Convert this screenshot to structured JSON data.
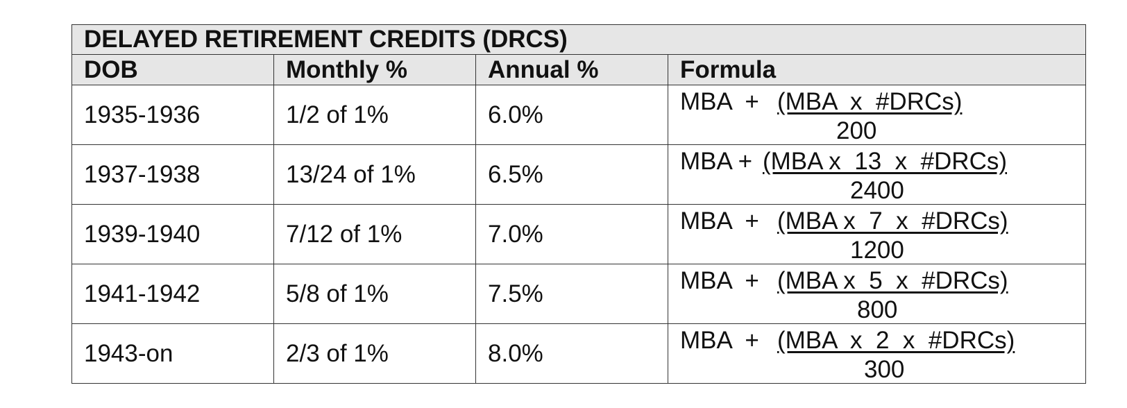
{
  "table": {
    "title": "DELAYED RETIREMENT CREDITS (DRCS)",
    "columns": [
      "DOB",
      "Monthly %",
      "Annual %",
      "Formula"
    ],
    "rows": [
      {
        "dob": "1935-1936",
        "monthly": "1/2 of 1%",
        "annual": "6.0%",
        "formula": {
          "prefix": "MBA  +",
          "numerator": "(MBA  x  #DRCs)",
          "denominator": "200"
        }
      },
      {
        "dob": "1937-1938",
        "monthly": "13/24 of 1%",
        "annual": "6.5%",
        "formula": {
          "prefix": "MBA +",
          "numerator": "(MBA x  13  x  #DRCs)",
          "denominator": "2400"
        }
      },
      {
        "dob": "1939-1940",
        "monthly": "7/12 of 1%",
        "annual": "7.0%",
        "formula": {
          "prefix": "MBA  +",
          "numerator": "(MBA x  7  x  #DRCs)",
          "denominator": "1200"
        }
      },
      {
        "dob": "1941-1942",
        "monthly": "5/8 of 1%",
        "annual": "7.5%",
        "formula": {
          "prefix": "MBA  +",
          "numerator": "(MBA x  5  x  #DRCs)",
          "denominator": "800"
        }
      },
      {
        "dob": "1943-on",
        "monthly": "2/3 of 1%",
        "annual": "8.0%",
        "formula": {
          "prefix": "MBA  +",
          "numerator": "(MBA  x  2  x  #DRCs)",
          "denominator": "300"
        }
      }
    ]
  }
}
